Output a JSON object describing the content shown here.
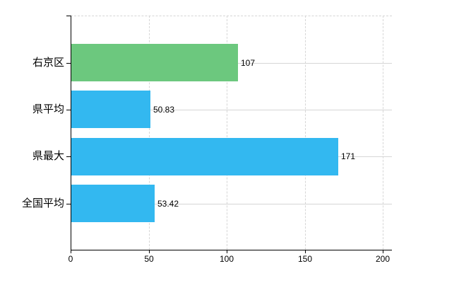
{
  "chart_data": {
    "type": "bar",
    "orientation": "horizontal",
    "title": "",
    "xlabel": "",
    "ylabel": "",
    "categories": [
      "右京区",
      "県平均",
      "県最大",
      "全国平均"
    ],
    "values": [
      107,
      50.83,
      171,
      53.42
    ],
    "value_labels": [
      "107",
      "50.83",
      "171",
      "53.42"
    ],
    "bar_colors": [
      "#6cc87e",
      "#33b8f0",
      "#33b8f0",
      "#33b8f0"
    ],
    "xlim": [
      0,
      200
    ],
    "xticks": [
      0,
      50,
      100,
      150,
      200
    ],
    "xtick_labels": [
      "0",
      "50",
      "100",
      "150",
      "200"
    ],
    "grid": true,
    "legend": false
  },
  "colors": {
    "background": "#ffffff",
    "axis": "#000000",
    "grid": "#d6d6d6",
    "text": "#000000",
    "bar_green": "#6cc87e",
    "bar_blue": "#33b8f0"
  }
}
